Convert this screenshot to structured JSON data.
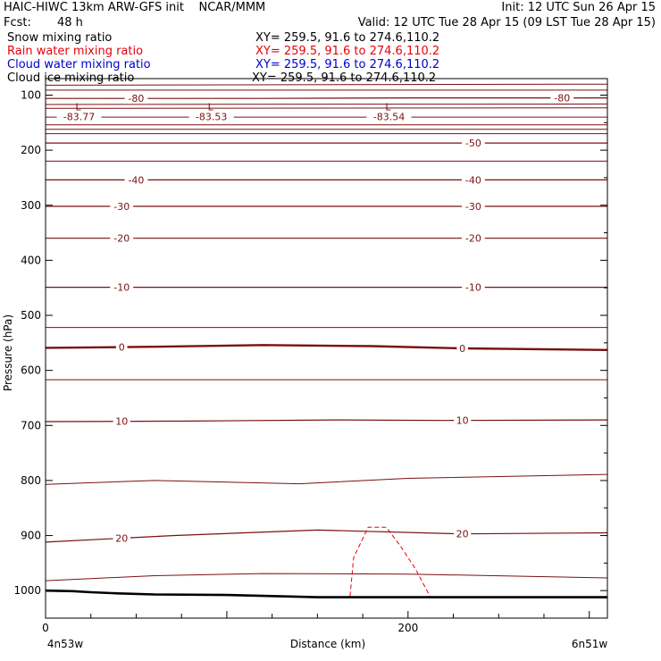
{
  "header": {
    "model_line": "HAIC-HIWC 13km ARW-GFS init    NCAR/MMM",
    "init_line": "Init: 12 UTC Sun 26 Apr 15",
    "fcst_label": "Fcst:",
    "fcst_value": "48 h",
    "valid_line": "Valid: 12 UTC Tue 28 Apr 15 (09 LST Tue 28 Apr 15)",
    "fields": [
      {
        "name": "Snow mixing ratio",
        "xy": "XY= 259.5, 91.6 to 274.6,110.2",
        "color": "#000000"
      },
      {
        "name": "Rain water mixing ratio",
        "xy": "XY= 259.5, 91.6 to 274.6,110.2",
        "color": "#e8000b"
      },
      {
        "name": "Cloud water mixing ratio",
        "xy": "XY= 259.5, 91.6 to 274.6,110.2",
        "color": "#0000cc"
      },
      {
        "name": "Cloud ice mixing ratio",
        "xy": "XY= 259.5, 91.6 to 274.6,110.2",
        "color": "#000000"
      }
    ]
  },
  "chart_data": {
    "type": "line",
    "title": "",
    "xlabel": "Distance (km)",
    "ylabel": "Pressure (hPa)",
    "xlim": [
      0,
      310
    ],
    "ylim": [
      1050,
      70
    ],
    "x_ticks": [
      0,
      200
    ],
    "y_ticks": [
      100,
      200,
      300,
      400,
      500,
      600,
      700,
      800,
      900,
      1000
    ],
    "x_endpoint_labels": {
      "left": "4n53w",
      "right": "6n51w"
    },
    "colors": {
      "temperature": "#7a1010",
      "rain_water": "#e8000b",
      "terrain": "#000000"
    },
    "temperature_contours": [
      {
        "value": -80,
        "label": "-80",
        "x": [
          0,
          60,
          120,
          200,
          310
        ],
        "y": [
          106,
          106,
          106,
          105,
          105
        ],
        "label_at": [
          50,
          285
        ]
      },
      {
        "value": -50,
        "label": "-50",
        "x": [
          0,
          310
        ],
        "y": [
          187,
          187
        ],
        "label_at": [
          236
        ]
      },
      {
        "value": -40,
        "label": "-40",
        "x": [
          0,
          310
        ],
        "y": [
          254,
          254
        ],
        "label_at": [
          50,
          236
        ]
      },
      {
        "value": -30,
        "label": "-30",
        "x": [
          0,
          310
        ],
        "y": [
          302,
          302
        ],
        "label_at": [
          42,
          236
        ]
      },
      {
        "value": -20,
        "label": "-20",
        "x": [
          0,
          310
        ],
        "y": [
          360,
          360
        ],
        "label_at": [
          42,
          236
        ]
      },
      {
        "value": -10,
        "label": "-10",
        "x": [
          0,
          310
        ],
        "y": [
          449,
          449
        ],
        "label_at": [
          42,
          236
        ]
      },
      {
        "value": 0,
        "label": "0",
        "x": [
          0,
          60,
          120,
          180,
          230,
          310
        ],
        "y": [
          559,
          557,
          554,
          556,
          560,
          563
        ],
        "label_at": [
          42,
          230
        ]
      },
      {
        "value": 10,
        "label": "10",
        "x": [
          0,
          80,
          160,
          220,
          310
        ],
        "y": [
          693,
          692,
          690,
          691,
          690
        ],
        "label_at": [
          42,
          230
        ]
      },
      {
        "value": 20,
        "label": "20",
        "x": [
          0,
          70,
          150,
          230,
          310
        ],
        "y": [
          912,
          900,
          890,
          897,
          895
        ],
        "label_at": [
          42,
          230
        ]
      }
    ],
    "minor_isotherms": [
      {
        "x": [
          0,
          310
        ],
        "y": [
          82,
          80
        ]
      },
      {
        "x": [
          0,
          310
        ],
        "y": [
          91,
          91
        ]
      },
      {
        "x": [
          0,
          310
        ],
        "y": [
          117,
          116
        ]
      },
      {
        "x": [
          0,
          310
        ],
        "y": [
          124,
          123
        ]
      },
      {
        "x": [
          0,
          310
        ],
        "y": [
          140,
          140
        ]
      },
      {
        "x": [
          0,
          310
        ],
        "y": [
          154,
          154
        ]
      },
      {
        "x": [
          0,
          310
        ],
        "y": [
          162,
          162
        ]
      },
      {
        "x": [
          0,
          310
        ],
        "y": [
          170,
          170
        ]
      },
      {
        "x": [
          0,
          310
        ],
        "y": [
          220,
          220
        ]
      },
      {
        "x": [
          0,
          310
        ],
        "y": [
          522,
          522
        ]
      },
      {
        "x": [
          0,
          310
        ],
        "y": [
          617,
          617
        ]
      },
      {
        "x": [
          0,
          60,
          140,
          200,
          310
        ],
        "y": [
          807,
          800,
          806,
          796,
          789
        ]
      },
      {
        "x": [
          0,
          60,
          120,
          200,
          310
        ],
        "y": [
          982,
          973,
          969,
          970,
          977
        ]
      }
    ],
    "minima_labels": [
      {
        "x": 18,
        "y": 82,
        "symbol": "L",
        "value": "-83.77"
      },
      {
        "x": 91,
        "y": 82,
        "symbol": "L",
        "value": "-83.53"
      },
      {
        "x": 189,
        "y": 82,
        "symbol": "L",
        "value": "-83.54"
      }
    ],
    "rain_water_contour": {
      "x": [
        168,
        170,
        178,
        188,
        196,
        204,
        212
      ],
      "y": [
        1010,
        940,
        885,
        885,
        920,
        960,
        1010
      ]
    },
    "terrain": {
      "x": [
        0,
        15,
        25,
        40,
        60,
        100,
        125,
        150,
        200,
        310
      ],
      "y": [
        1000,
        1001,
        1003,
        1005,
        1007,
        1008,
        1010,
        1012,
        1012,
        1012
      ]
    }
  }
}
